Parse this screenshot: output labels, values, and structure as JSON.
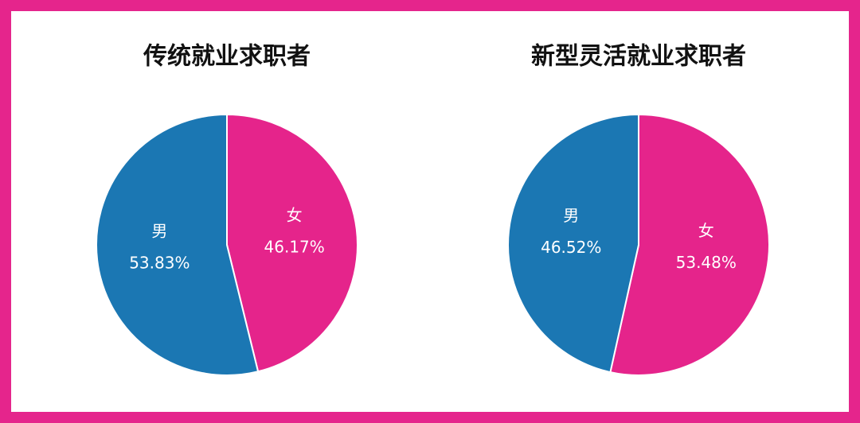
{
  "chart_data": [
    {
      "type": "pie",
      "title": "传统就业求职者",
      "categories": [
        "男",
        "女"
      ],
      "values": [
        53.83,
        46.17
      ],
      "value_labels": [
        "53.83%",
        "46.17%"
      ],
      "colors": [
        "#1b77b3",
        "#e5248b"
      ]
    },
    {
      "type": "pie",
      "title": "新型灵活就业求职者",
      "categories": [
        "男",
        "女"
      ],
      "values": [
        46.52,
        53.48
      ],
      "value_labels": [
        "46.52%",
        "53.48%"
      ],
      "colors": [
        "#1b77b3",
        "#e5248b"
      ]
    }
  ]
}
